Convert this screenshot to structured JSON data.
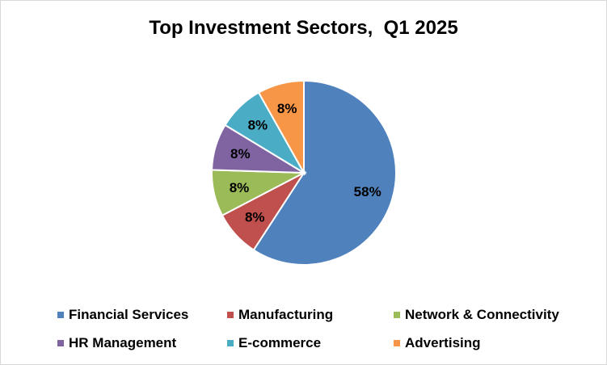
{
  "chart_data": {
    "type": "pie",
    "title": "Top Investment Sectors,  Q1 2025",
    "legend_position": "bottom",
    "slices": [
      {
        "name": "Financial Services",
        "value": 58,
        "label": "58%",
        "color": "#4F81BD"
      },
      {
        "name": "Manufacturing",
        "value": 8,
        "label": "8%",
        "color": "#C0504D"
      },
      {
        "name": "Network & Connectivity",
        "value": 8,
        "label": "8%",
        "color": "#9BBB59"
      },
      {
        "name": "HR Management",
        "value": 8,
        "label": "8%",
        "color": "#8064A2"
      },
      {
        "name": "E-commerce",
        "value": 8,
        "label": "8%",
        "color": "#4BACC6"
      },
      {
        "name": "Advertising",
        "value": 8,
        "label": "8%",
        "color": "#F79646"
      }
    ]
  }
}
